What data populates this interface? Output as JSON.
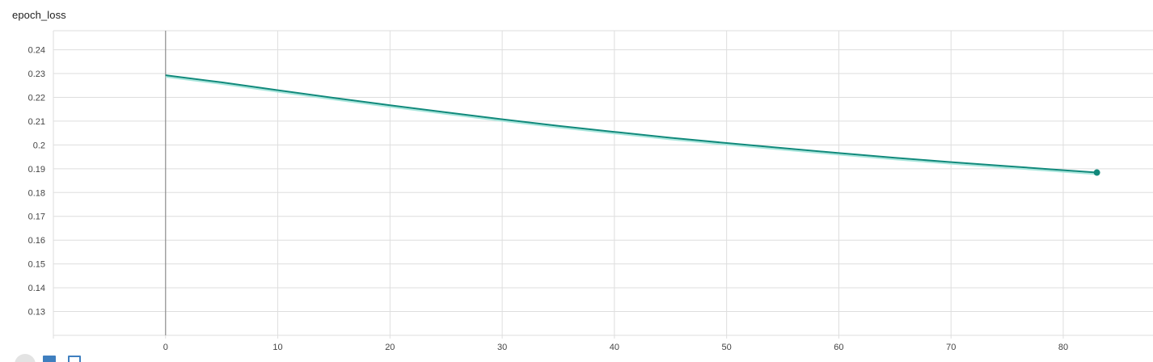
{
  "card": {
    "title": "epoch_loss"
  },
  "colors": {
    "series_line": "#10897b",
    "series_smoothed_shadow": "#a8e6dc",
    "grid": "#dedede",
    "y_axis_at_zero": "#8c8c8c"
  },
  "toolbar": {
    "buttons": [
      "fullscreen-icon",
      "log-scale-icon",
      "fit-domain-icon"
    ]
  },
  "chart_data": {
    "type": "line",
    "title": "epoch_loss",
    "xlabel": "",
    "ylabel": "",
    "xlim": [
      -10,
      88
    ],
    "ylim": [
      0.12,
      0.248
    ],
    "x_ticks": [
      0,
      10,
      20,
      30,
      40,
      50,
      60,
      70,
      80
    ],
    "y_ticks": [
      0.13,
      0.14,
      0.15,
      0.16,
      0.17,
      0.18,
      0.19,
      0.2,
      0.21,
      0.22,
      0.23,
      0.24
    ],
    "y_tick_labels": [
      "0.13",
      "0.14",
      "0.15",
      "0.16",
      "0.17",
      "0.18",
      "0.19",
      "0.2",
      "0.21",
      "0.22",
      "0.23",
      "0.24"
    ],
    "grid": true,
    "series": [
      {
        "x": [
          0,
          5,
          10,
          15,
          20,
          25,
          30,
          35,
          40,
          45,
          50,
          55,
          60,
          65,
          70,
          75,
          80,
          83
        ],
        "y": [
          0.2293,
          0.2263,
          0.223,
          0.2198,
          0.2167,
          0.2137,
          0.2108,
          0.208,
          0.2055,
          0.203,
          0.2008,
          0.1987,
          0.1966,
          0.1946,
          0.1928,
          0.1911,
          0.1894,
          0.1884
        ]
      }
    ]
  }
}
